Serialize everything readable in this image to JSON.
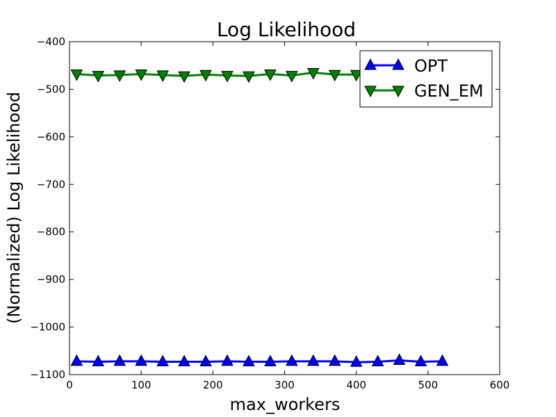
{
  "chart_data": {
    "type": "line",
    "title": "Log Likelihood",
    "xlabel": "max_workers",
    "ylabel": "(Normalized) Log Likelihood",
    "xlim": [
      0,
      600
    ],
    "ylim": [
      -1100,
      -400
    ],
    "xticks": [
      0,
      100,
      200,
      300,
      400,
      500,
      600
    ],
    "yticks": [
      -400,
      -500,
      -600,
      -700,
      -800,
      -900,
      -1000,
      -1100
    ],
    "xtick_labels": [
      "0",
      "100",
      "200",
      "300",
      "400",
      "500",
      "600"
    ],
    "ytick_labels": [
      "−400",
      "−500",
      "−600",
      "−700",
      "−800",
      "−900",
      "−1000",
      "−1100"
    ],
    "grid": false,
    "legend_position": "top-right",
    "x": [
      10,
      40,
      70,
      100,
      130,
      160,
      190,
      220,
      250,
      280,
      310,
      340,
      370,
      400,
      430,
      460,
      490,
      520
    ],
    "series": [
      {
        "name": "OPT",
        "color": "#0000ff",
        "marker": "triangle-up",
        "values": [
          -1072,
          -1073,
          -1072,
          -1072,
          -1073,
          -1073,
          -1073,
          -1072,
          -1073,
          -1073,
          -1072,
          -1072,
          -1072,
          -1074,
          -1073,
          -1070,
          -1073,
          -1072
        ]
      },
      {
        "name": "GEN_EM",
        "color": "#008000",
        "marker": "triangle-down",
        "values": [
          -468,
          -471,
          -470,
          -468,
          -470,
          -472,
          -469,
          -471,
          -472,
          -468,
          -471,
          -465,
          -469,
          -469,
          -470,
          -468,
          -467,
          -469
        ]
      }
    ]
  }
}
